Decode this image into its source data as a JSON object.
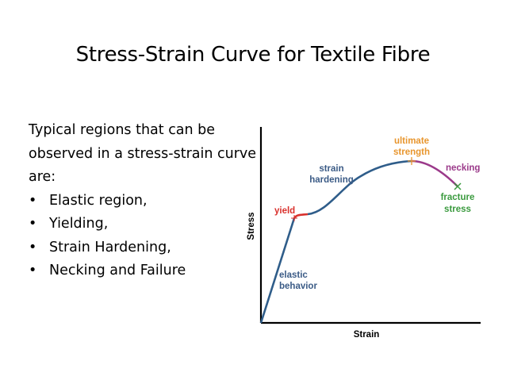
{
  "title": "Stress-Strain Curve for Textile Fibre",
  "intro": "Typical regions that can be observed in a stress-strain curve are:",
  "bullets": [
    "Elastic region,",
    "Yielding,",
    "Strain Hardening,",
    "Necking and Failure"
  ],
  "bullet_symbol": "•",
  "diagram": {
    "x_axis_label": "Strain",
    "y_axis_label": "Stress",
    "labels": {
      "yield": "yield",
      "elastic_1": "elastic",
      "elastic_2": "behavior",
      "hardening_1": "strain",
      "hardening_2": "hardening",
      "ultimate_1": "ultimate",
      "ultimate_2": "strength",
      "necking": "necking",
      "fracture_1": "fracture",
      "fracture_2": "stress"
    },
    "colors": {
      "axes": "#000000",
      "elastic": "#2f5d8a",
      "yield": "#d9302c",
      "hardening": "#2f5d8a",
      "ultimate": "#e8962e",
      "necking": "#9b3a8a",
      "fracture": "#3a9a3e",
      "label_blue": "#3b5b86"
    }
  }
}
